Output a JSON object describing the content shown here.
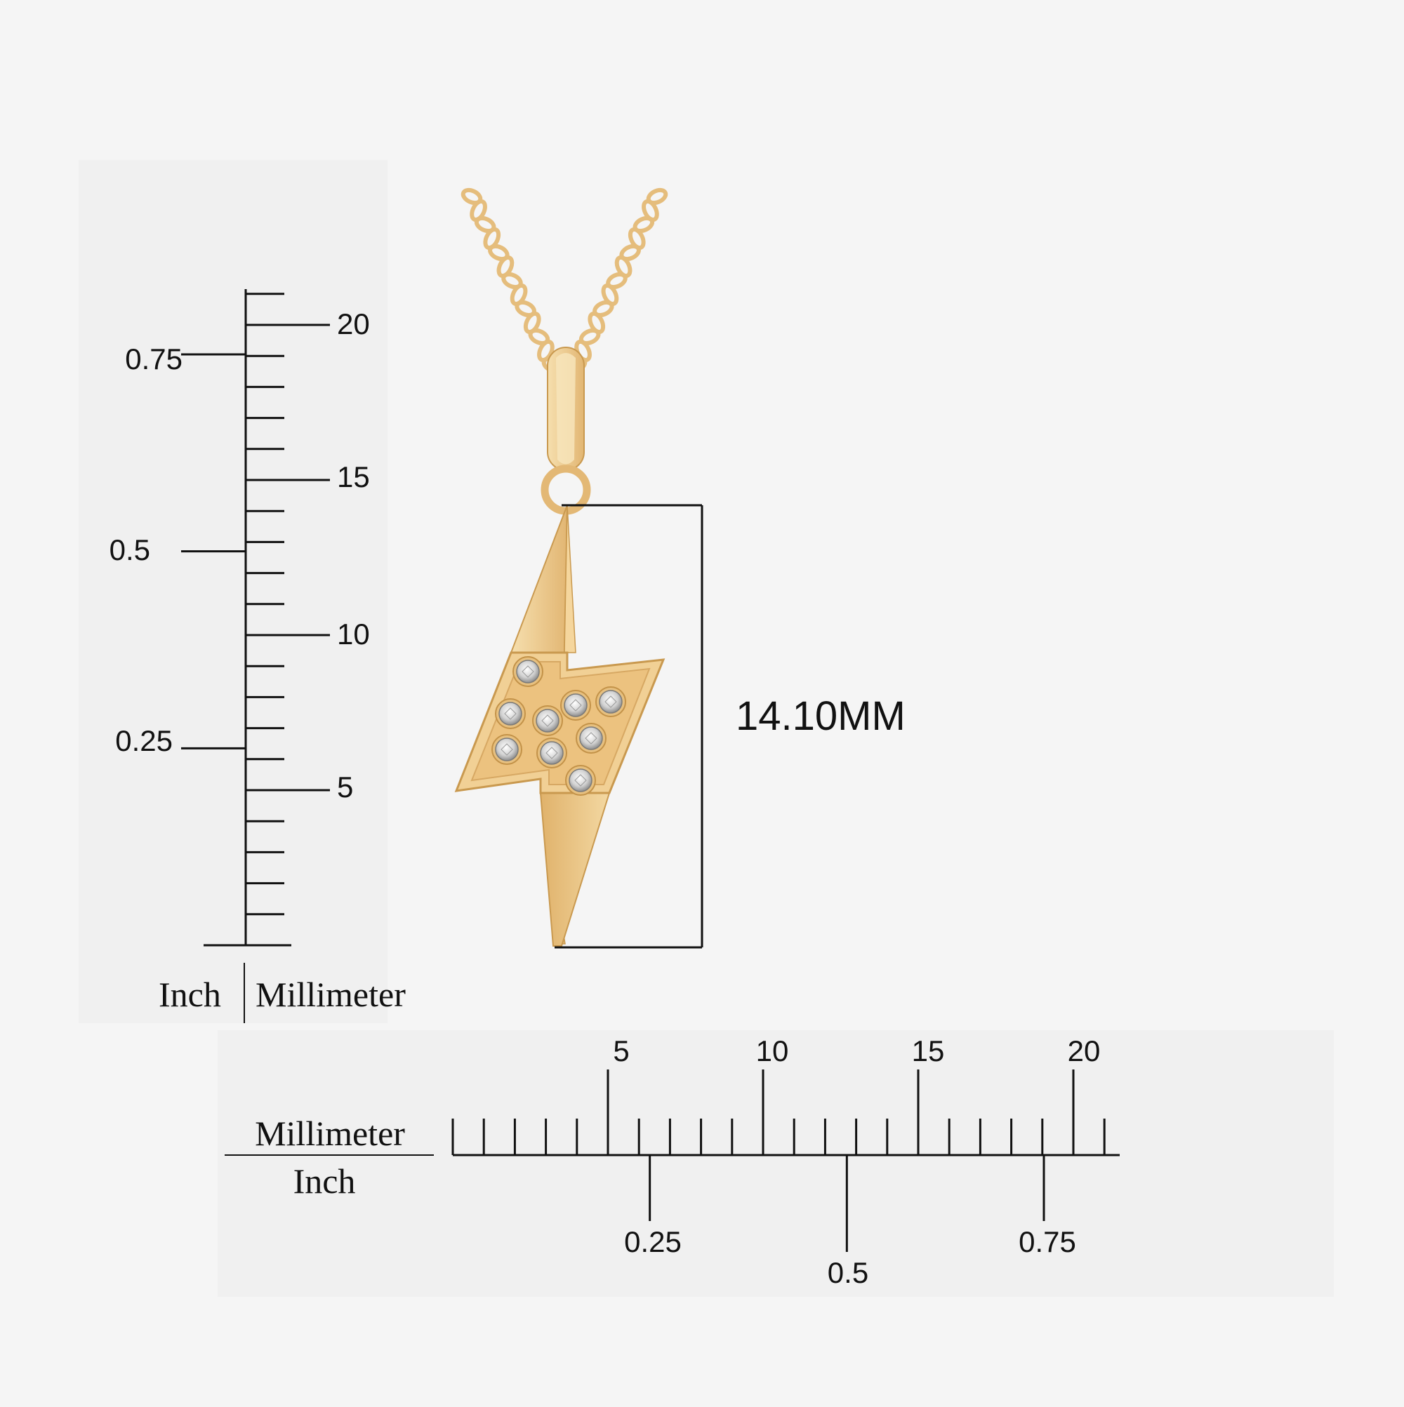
{
  "product": {
    "name": "lightning bolt pendant",
    "metal_color": "#e8c27f",
    "stone_count": 9
  },
  "dimension": {
    "height_label": "14.10MM"
  },
  "vertical_ruler": {
    "left_unit": "Inch",
    "right_unit": "Millimeter",
    "inch_labels": [
      "0.25",
      "0.5",
      "0.75"
    ],
    "mm_labels": [
      "5",
      "10",
      "15",
      "20"
    ]
  },
  "horizontal_ruler": {
    "top_unit": "Millimeter",
    "bottom_unit": "Inch",
    "mm_labels": [
      "5",
      "10",
      "15",
      "20"
    ],
    "inch_labels": [
      "0.25",
      "0.5",
      "0.75"
    ]
  }
}
